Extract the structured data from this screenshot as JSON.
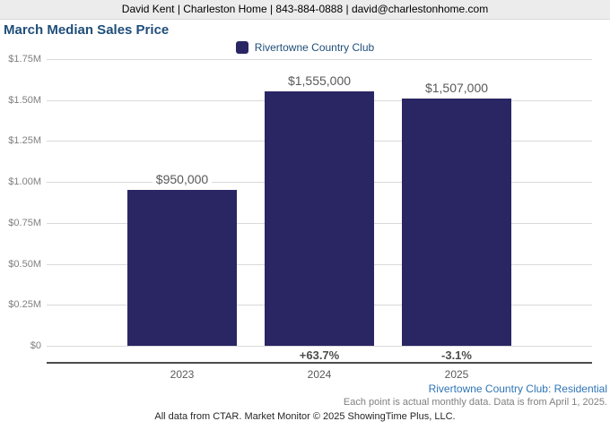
{
  "header": {
    "contact_line": "David Kent | Charleston Home | 843-884-0888 | david@charlestonhome.com"
  },
  "legend": {
    "label": "Rivertowne Country Club"
  },
  "chart_data": {
    "type": "bar",
    "title": "March Median Sales Price",
    "series_name": "Rivertowne Country Club",
    "categories": [
      "2023",
      "2024",
      "2025"
    ],
    "values": [
      950000,
      1555000,
      1507000
    ],
    "value_labels": [
      "$950,000",
      "$1,555,000",
      "$1,507,000"
    ],
    "pct_change_labels": [
      "",
      "+63.7%",
      "-3.1%"
    ],
    "xlabel": "",
    "ylabel": "",
    "ylim": [
      0,
      1750000
    ],
    "ytick_values": [
      1750000,
      1500000,
      1250000,
      1000000,
      750000,
      500000,
      250000,
      0
    ],
    "ytick_labels": [
      "$1.75M",
      "$1.50M",
      "$1.25M",
      "$1.00M",
      "$0.75M",
      "$0.50M",
      "$0.25M",
      "$0"
    ],
    "grid": true,
    "legend_position": "top"
  },
  "footnotes": {
    "series_note": "Rivertowne Country Club: Residential",
    "data_note": "Each point is actual monthly data. Data is from April 1, 2025.",
    "source_note": "All data from CTAR. Market Monitor © 2025 ShowingTime Plus, LLC."
  },
  "colors": {
    "bar": "#2a2563",
    "header_bg": "#ececec",
    "title_blue": "#1f4e79",
    "legend_text_blue": "#1f4e79",
    "note_blue": "#2e74b5"
  }
}
